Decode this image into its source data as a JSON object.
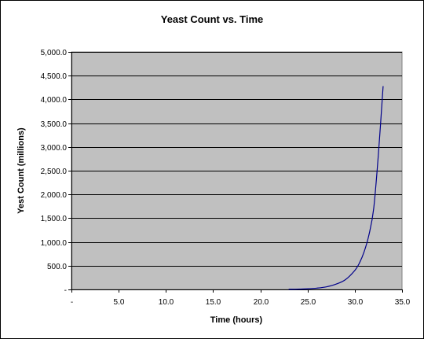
{
  "chart_data": {
    "type": "line",
    "title": "Yeast Count vs. Time",
    "xlabel": "Time (hours)",
    "ylabel": "Yest Count (millions)",
    "xlim": [
      0,
      35
    ],
    "ylim": [
      0,
      5000
    ],
    "x_ticks": [
      0,
      5,
      10,
      15,
      20,
      25,
      30,
      35
    ],
    "x_tick_labels": [
      "-",
      "5.0",
      "10.0",
      "15.0",
      "20.0",
      "25.0",
      "30.0",
      "35.0"
    ],
    "y_ticks": [
      0,
      500,
      1000,
      1500,
      2000,
      2500,
      3000,
      3500,
      4000,
      4500,
      5000
    ],
    "y_tick_labels": [
      "-",
      "500.0",
      "1,000.0",
      "1,500.0",
      "2,000.0",
      "2,500.0",
      "3,000.0",
      "3,500.0",
      "4,000.0",
      "4,500.0",
      "5,000.0"
    ],
    "grid": true,
    "legend": "none",
    "plot_background": "#c0c0c0",
    "series": [
      {
        "color": "#00008b",
        "x": [
          23,
          24,
          25,
          26,
          27,
          28,
          29,
          30,
          30.5,
          31,
          31.5,
          32,
          32.5,
          33
        ],
        "y": [
          4,
          7,
          14,
          28,
          55,
          110,
          205,
          400,
          560,
          800,
          1150,
          1700,
          2850,
          4280
        ]
      }
    ]
  }
}
